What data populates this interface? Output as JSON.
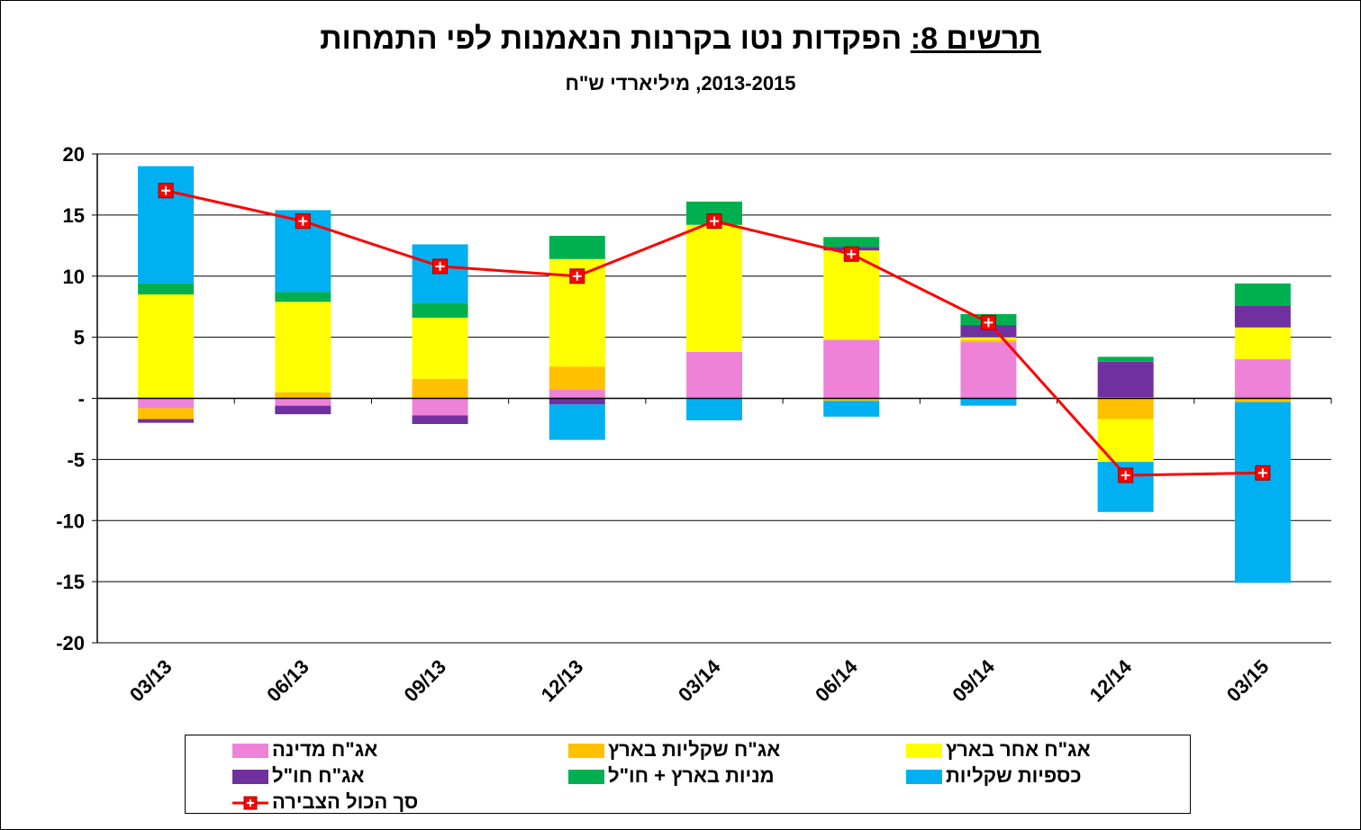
{
  "header": {
    "title_prefix": "תרשים 8:",
    "title_main": " הפקדות נטו בקרנות הנאמנות לפי התמחות",
    "subtitle": "2013-2015,  מיליארדי ש\"ח"
  },
  "colors": {
    "state_bonds": "#EE82D9",
    "shekel_bonds": "#FFC000",
    "other_bonds": "#FFFF00",
    "foreign_bonds": "#7030A0",
    "equities": "#00B050",
    "money_market": "#00B0F0",
    "total_line": "#FF0000"
  },
  "chart_data": {
    "type": "bar",
    "stacked": true,
    "categories": [
      "03/13",
      "06/13",
      "09/13",
      "12/13",
      "03/14",
      "06/14",
      "09/14",
      "12/14",
      "03/15"
    ],
    "ylim": [
      -20,
      20
    ],
    "yticks": [
      20,
      15,
      10,
      5,
      0,
      -5,
      -10,
      -15,
      -20
    ],
    "ytick_labels": [
      "20",
      "15",
      "10",
      "5",
      "-",
      "-5",
      "-10",
      "-15",
      "-20"
    ],
    "grid": true,
    "legend_position": "bottom",
    "series": [
      {
        "key": "state_bonds",
        "name": "אג\"ח מדינה",
        "values": [
          -0.8,
          -0.6,
          -1.4,
          0.7,
          3.8,
          4.8,
          4.6,
          0.1,
          3.2
        ]
      },
      {
        "key": "shekel_bonds",
        "name": "אג\"ח שקליות בארץ",
        "values": [
          -0.9,
          0.5,
          1.6,
          1.9,
          0.0,
          -0.2,
          0.2,
          -1.7,
          -0.3
        ]
      },
      {
        "key": "other_bonds",
        "name": "אג\"ח אחר בארץ",
        "values": [
          8.5,
          7.4,
          5.0,
          8.8,
          10.4,
          7.3,
          0.2,
          -3.5,
          2.6
        ]
      },
      {
        "key": "foreign_bonds",
        "name": "אג\"ח חו\"ל",
        "values": [
          -0.3,
          -0.7,
          -0.7,
          -0.5,
          0.0,
          0.3,
          1.0,
          2.9,
          1.8
        ]
      },
      {
        "key": "equities",
        "name": "מניות בארץ + חו\"ל",
        "values": [
          0.9,
          0.8,
          1.2,
          1.9,
          1.9,
          0.8,
          0.9,
          0.4,
          1.8
        ]
      },
      {
        "key": "money_market",
        "name": "כספיות שקליות",
        "values": [
          9.6,
          6.7,
          4.8,
          -2.9,
          -1.8,
          -1.3,
          -0.6,
          -4.1,
          -14.8
        ]
      }
    ],
    "line_series": {
      "key": "total_line",
      "name": "סך הכול הצבירה",
      "values": [
        17.0,
        14.5,
        10.8,
        10.0,
        14.5,
        11.8,
        6.2,
        -6.3,
        -6.1
      ]
    }
  }
}
